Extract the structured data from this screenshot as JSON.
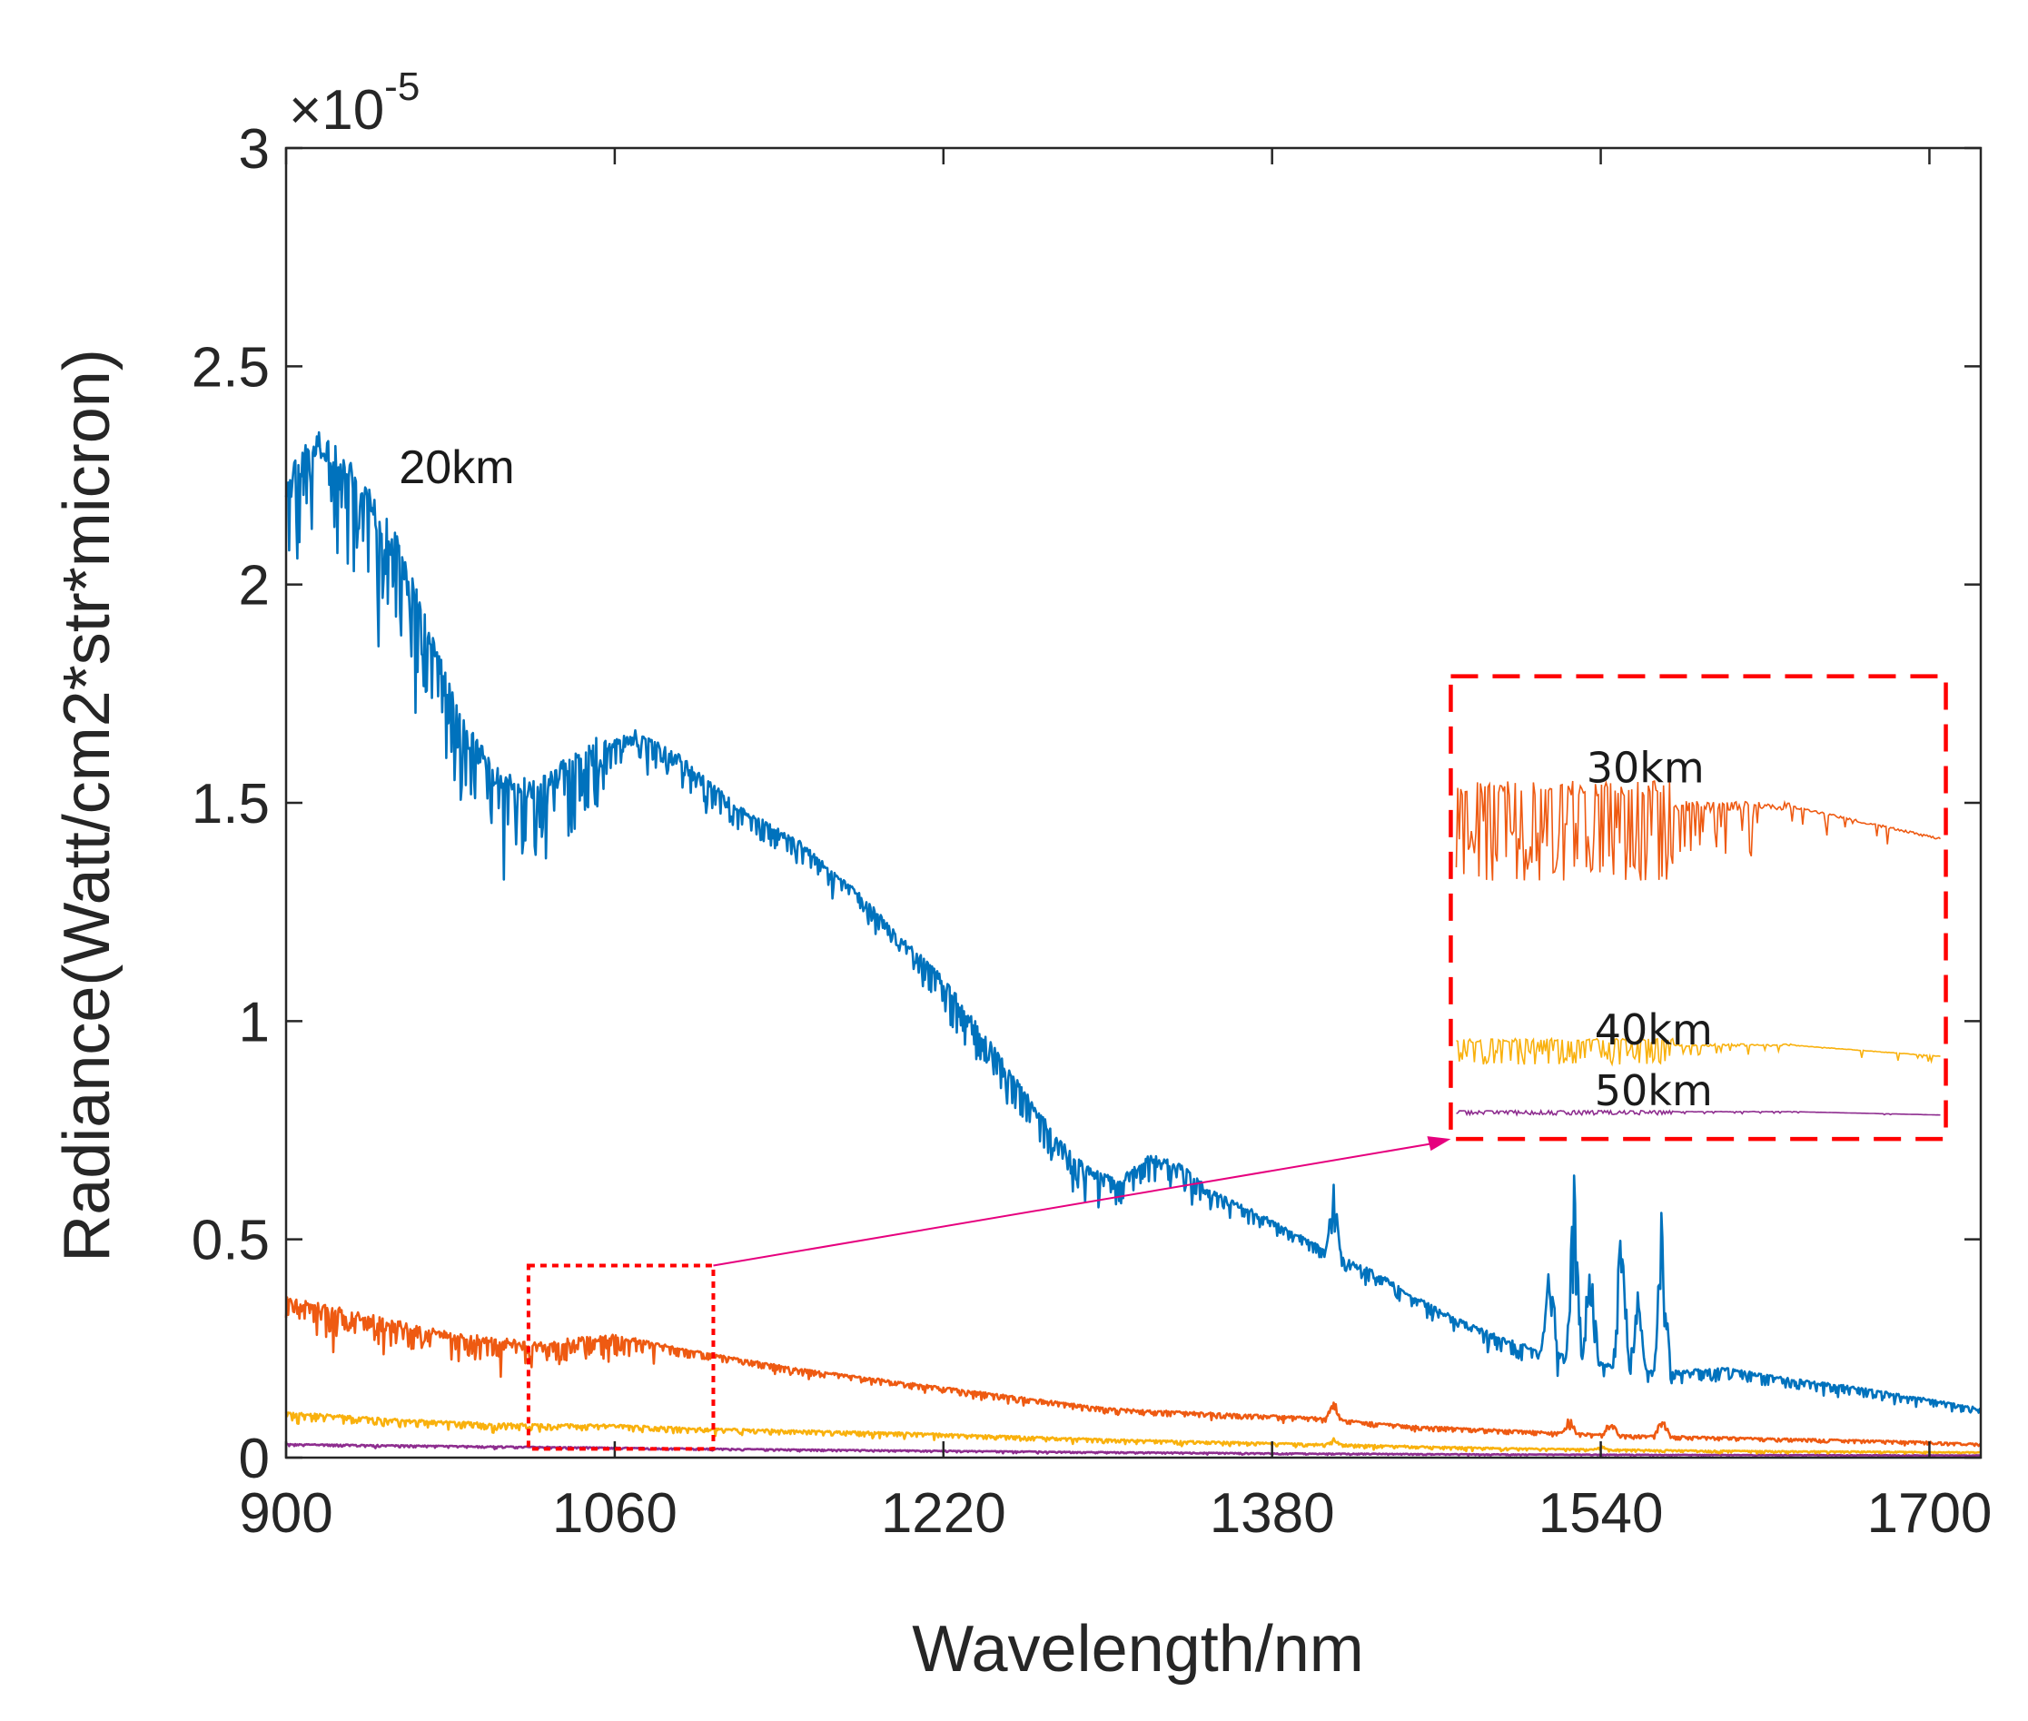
{
  "chart_data": {
    "type": "line",
    "title": "",
    "xlabel": "Wavelength/nm",
    "ylabel": "Radiance(Watt/cm2*str*micron)",
    "y_exponent_label": "×10",
    "y_exponent_power": "-5",
    "xlim": [
      900,
      1725
    ],
    "ylim": [
      0,
      3
    ],
    "x_ticks": [
      900,
      1060,
      1220,
      1380,
      1540,
      1700
    ],
    "x_tick_labels": [
      "900",
      "1060",
      "1220",
      "1380",
      "1540",
      "1700"
    ],
    "y_ticks": [
      0,
      0.5,
      1,
      1.5,
      2,
      2.5,
      3
    ],
    "y_tick_labels": [
      "0",
      "0.5",
      "1",
      "1.5",
      "2",
      "2.5",
      "3"
    ],
    "grid": false,
    "series": [
      {
        "name": "20km",
        "color": "#0072BD",
        "anchors": [
          [
            900,
            2.2
          ],
          [
            915,
            2.3
          ],
          [
            935,
            2.2
          ],
          [
            955,
            2.05
          ],
          [
            970,
            1.85
          ],
          [
            985,
            1.65
          ],
          [
            1000,
            1.55
          ],
          [
            1020,
            1.5
          ],
          [
            1035,
            1.55
          ],
          [
            1055,
            1.62
          ],
          [
            1070,
            1.65
          ],
          [
            1090,
            1.6
          ],
          [
            1120,
            1.48
          ],
          [
            1150,
            1.4
          ],
          [
            1180,
            1.28
          ],
          [
            1200,
            1.18
          ],
          [
            1220,
            1.08
          ],
          [
            1240,
            0.95
          ],
          [
            1260,
            0.82
          ],
          [
            1275,
            0.72
          ],
          [
            1290,
            0.65
          ],
          [
            1305,
            0.62
          ],
          [
            1320,
            0.68
          ],
          [
            1335,
            0.66
          ],
          [
            1350,
            0.6
          ],
          [
            1375,
            0.55
          ],
          [
            1395,
            0.5
          ],
          [
            1410,
            0.46
          ],
          [
            1430,
            0.42
          ],
          [
            1450,
            0.36
          ],
          [
            1470,
            0.31
          ],
          [
            1490,
            0.27
          ],
          [
            1510,
            0.24
          ],
          [
            1540,
            0.21
          ],
          [
            1570,
            0.19
          ],
          [
            1600,
            0.2
          ],
          [
            1625,
            0.18
          ],
          [
            1660,
            0.16
          ],
          [
            1700,
            0.13
          ],
          [
            1725,
            0.11
          ]
        ],
        "noise": [
          [
            900,
            0.2
          ],
          [
            1000,
            0.14
          ],
          [
            1050,
            0.14
          ],
          [
            1060,
            0.05
          ],
          [
            1200,
            0.03
          ],
          [
            1220,
            0.07
          ],
          [
            1300,
            0.05
          ],
          [
            1350,
            0.04
          ],
          [
            1380,
            0.02
          ],
          [
            1500,
            0.03
          ],
          [
            1725,
            0.01
          ]
        ],
        "peaks": [
          [
            1410,
            0.16
          ],
          [
            1515,
            0.28
          ],
          [
            1527,
            0.42
          ],
          [
            1535,
            0.3
          ],
          [
            1550,
            0.38
          ],
          [
            1558,
            0.22
          ],
          [
            1570,
            0.42
          ]
        ]
      },
      {
        "name": "30km",
        "color": "#EE5A12",
        "anchors": [
          [
            900,
            0.35
          ],
          [
            940,
            0.31
          ],
          [
            980,
            0.27
          ],
          [
            1020,
            0.25
          ],
          [
            1060,
            0.27
          ],
          [
            1100,
            0.24
          ],
          [
            1150,
            0.2
          ],
          [
            1200,
            0.17
          ],
          [
            1250,
            0.14
          ],
          [
            1300,
            0.11
          ],
          [
            1350,
            0.1
          ],
          [
            1400,
            0.09
          ],
          [
            1450,
            0.07
          ],
          [
            1500,
            0.06
          ],
          [
            1550,
            0.05
          ],
          [
            1600,
            0.045
          ],
          [
            1650,
            0.04
          ],
          [
            1700,
            0.035
          ],
          [
            1725,
            0.03
          ]
        ],
        "noise": [
          [
            900,
            0.06
          ],
          [
            1060,
            0.04
          ],
          [
            1100,
            0.012
          ],
          [
            1725,
            0.005
          ]
        ],
        "peaks": [
          [
            1410,
            0.05
          ],
          [
            1525,
            0.04
          ],
          [
            1545,
            0.04
          ],
          [
            1570,
            0.05
          ]
        ]
      },
      {
        "name": "40km",
        "color": "#F9B10D",
        "anchors": [
          [
            900,
            0.1
          ],
          [
            950,
            0.085
          ],
          [
            1000,
            0.075
          ],
          [
            1060,
            0.072
          ],
          [
            1100,
            0.065
          ],
          [
            1200,
            0.055
          ],
          [
            1300,
            0.04
          ],
          [
            1400,
            0.03
          ],
          [
            1500,
            0.02
          ],
          [
            1600,
            0.015
          ],
          [
            1725,
            0.012
          ]
        ],
        "noise": [
          [
            900,
            0.015
          ],
          [
            1060,
            0.01
          ],
          [
            1725,
            0.002
          ]
        ],
        "peaks": [
          [
            1410,
            0.015
          ],
          [
            1540,
            0.01
          ]
        ]
      },
      {
        "name": "50km",
        "color": "#8E2D8F",
        "anchors": [
          [
            900,
            0.03
          ],
          [
            1000,
            0.025
          ],
          [
            1100,
            0.02
          ],
          [
            1200,
            0.016
          ],
          [
            1300,
            0.012
          ],
          [
            1400,
            0.009
          ],
          [
            1500,
            0.007
          ],
          [
            1600,
            0.006
          ],
          [
            1725,
            0.005
          ]
        ],
        "noise": [
          [
            900,
            0.004
          ],
          [
            1725,
            0.001
          ]
        ],
        "peaks": []
      }
    ],
    "annotations": {
      "main_label": {
        "text": "20km",
        "x": 955,
        "y": 2.27
      },
      "zoom_box": {
        "x": [
          1018,
          1108
        ],
        "y": [
          0.02,
          0.44
        ],
        "color": "#FF0000"
      },
      "inset_box": {
        "x": [
          1467,
          1708
        ],
        "y": [
          0.73,
          1.79
        ],
        "color": "#FF0000"
      },
      "arrow": {
        "from": [
          1108,
          0.44
        ],
        "to": [
          1467,
          0.73
        ],
        "color": "#E6007E"
      },
      "inset_labels": [
        {
          "text": "30km",
          "x": 1533,
          "y": 1.58
        },
        {
          "text": "40km",
          "x": 1537,
          "y": 0.98
        },
        {
          "text": "50km",
          "x": 1537,
          "y": 0.84
        }
      ],
      "inset_series": [
        {
          "name": "30km",
          "color": "#EE5A12",
          "y_top": 1.55,
          "y_bottom": 1.32,
          "tail": 1.42
        },
        {
          "name": "40km",
          "color": "#F9B10D",
          "y_top": 0.96,
          "y_bottom": 0.9,
          "tail": 0.92
        },
        {
          "name": "50km",
          "color": "#8E2D8F",
          "y_top": 0.795,
          "y_bottom": 0.785,
          "tail": 0.785
        }
      ]
    }
  }
}
